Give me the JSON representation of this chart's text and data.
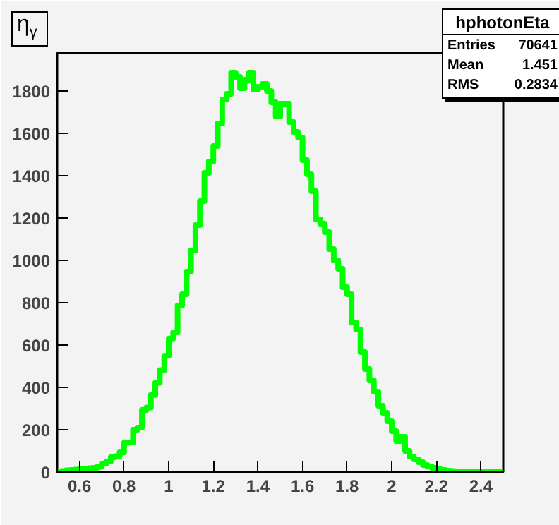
{
  "chart_data": {
    "type": "histogram",
    "title": "η$_{γ}$",
    "color": "#00ff00",
    "bins": [
      0.5,
      0.52,
      0.54,
      0.56,
      0.58,
      0.6,
      0.62,
      0.64,
      0.66,
      0.68,
      0.7,
      0.72,
      0.74,
      0.76,
      0.78,
      0.8,
      0.82,
      0.84,
      0.86,
      0.88,
      0.9,
      0.92,
      0.94,
      0.96,
      0.98,
      1.0,
      1.02,
      1.04,
      1.06,
      1.08,
      1.1,
      1.12,
      1.14,
      1.16,
      1.18,
      1.2,
      1.22,
      1.24,
      1.26,
      1.28,
      1.3,
      1.32,
      1.34,
      1.36,
      1.38,
      1.4,
      1.42,
      1.44,
      1.46,
      1.48,
      1.5,
      1.52,
      1.54,
      1.56,
      1.58,
      1.6,
      1.62,
      1.64,
      1.66,
      1.68,
      1.7,
      1.72,
      1.74,
      1.76,
      1.78,
      1.8,
      1.82,
      1.84,
      1.86,
      1.88,
      1.9,
      1.92,
      1.94,
      1.96,
      1.98,
      2.0,
      2.02,
      2.04,
      2.06,
      2.08,
      2.1,
      2.12,
      2.14,
      2.16,
      2.18,
      2.2,
      2.22,
      2.24,
      2.26,
      2.28,
      2.3,
      2.32,
      2.34,
      2.36,
      2.38,
      2.4,
      2.42,
      2.44,
      2.46,
      2.48,
      2.5
    ],
    "values": [
      3,
      5,
      8,
      10,
      12,
      15,
      15,
      18,
      20,
      25,
      40,
      50,
      70,
      75,
      93,
      138,
      140,
      200,
      210,
      293,
      305,
      364,
      422,
      482,
      549,
      631,
      660,
      787,
      840,
      947,
      1047,
      1167,
      1280,
      1413,
      1467,
      1540,
      1647,
      1760,
      1787,
      1887,
      1867,
      1813,
      1853,
      1887,
      1807,
      1820,
      1833,
      1800,
      1747,
      1680,
      1740,
      1740,
      1653,
      1607,
      1580,
      1473,
      1407,
      1327,
      1193,
      1173,
      1133,
      1053,
      1000,
      960,
      873,
      840,
      707,
      673,
      567,
      487,
      433,
      380,
      313,
      280,
      240,
      193,
      147,
      167,
      100,
      73,
      60,
      47,
      33,
      27,
      20,
      13,
      10,
      7,
      5,
      3,
      2,
      1,
      1,
      0,
      0,
      0,
      0,
      0,
      0,
      0
    ],
    "xlim": [
      0.5,
      2.5
    ],
    "ylim": [
      0,
      1980
    ],
    "xticks": [
      0.6,
      0.8,
      1,
      1.2,
      1.4,
      1.6,
      1.8,
      2,
      2.2,
      2.4
    ],
    "yticks": [
      0,
      200,
      400,
      600,
      800,
      1000,
      1200,
      1400,
      1600,
      1800
    ],
    "annotations": [
      "hphotonEta",
      "Entries",
      "70641",
      "Mean",
      "1.451",
      "RMS",
      "0.2834"
    ]
  }
}
